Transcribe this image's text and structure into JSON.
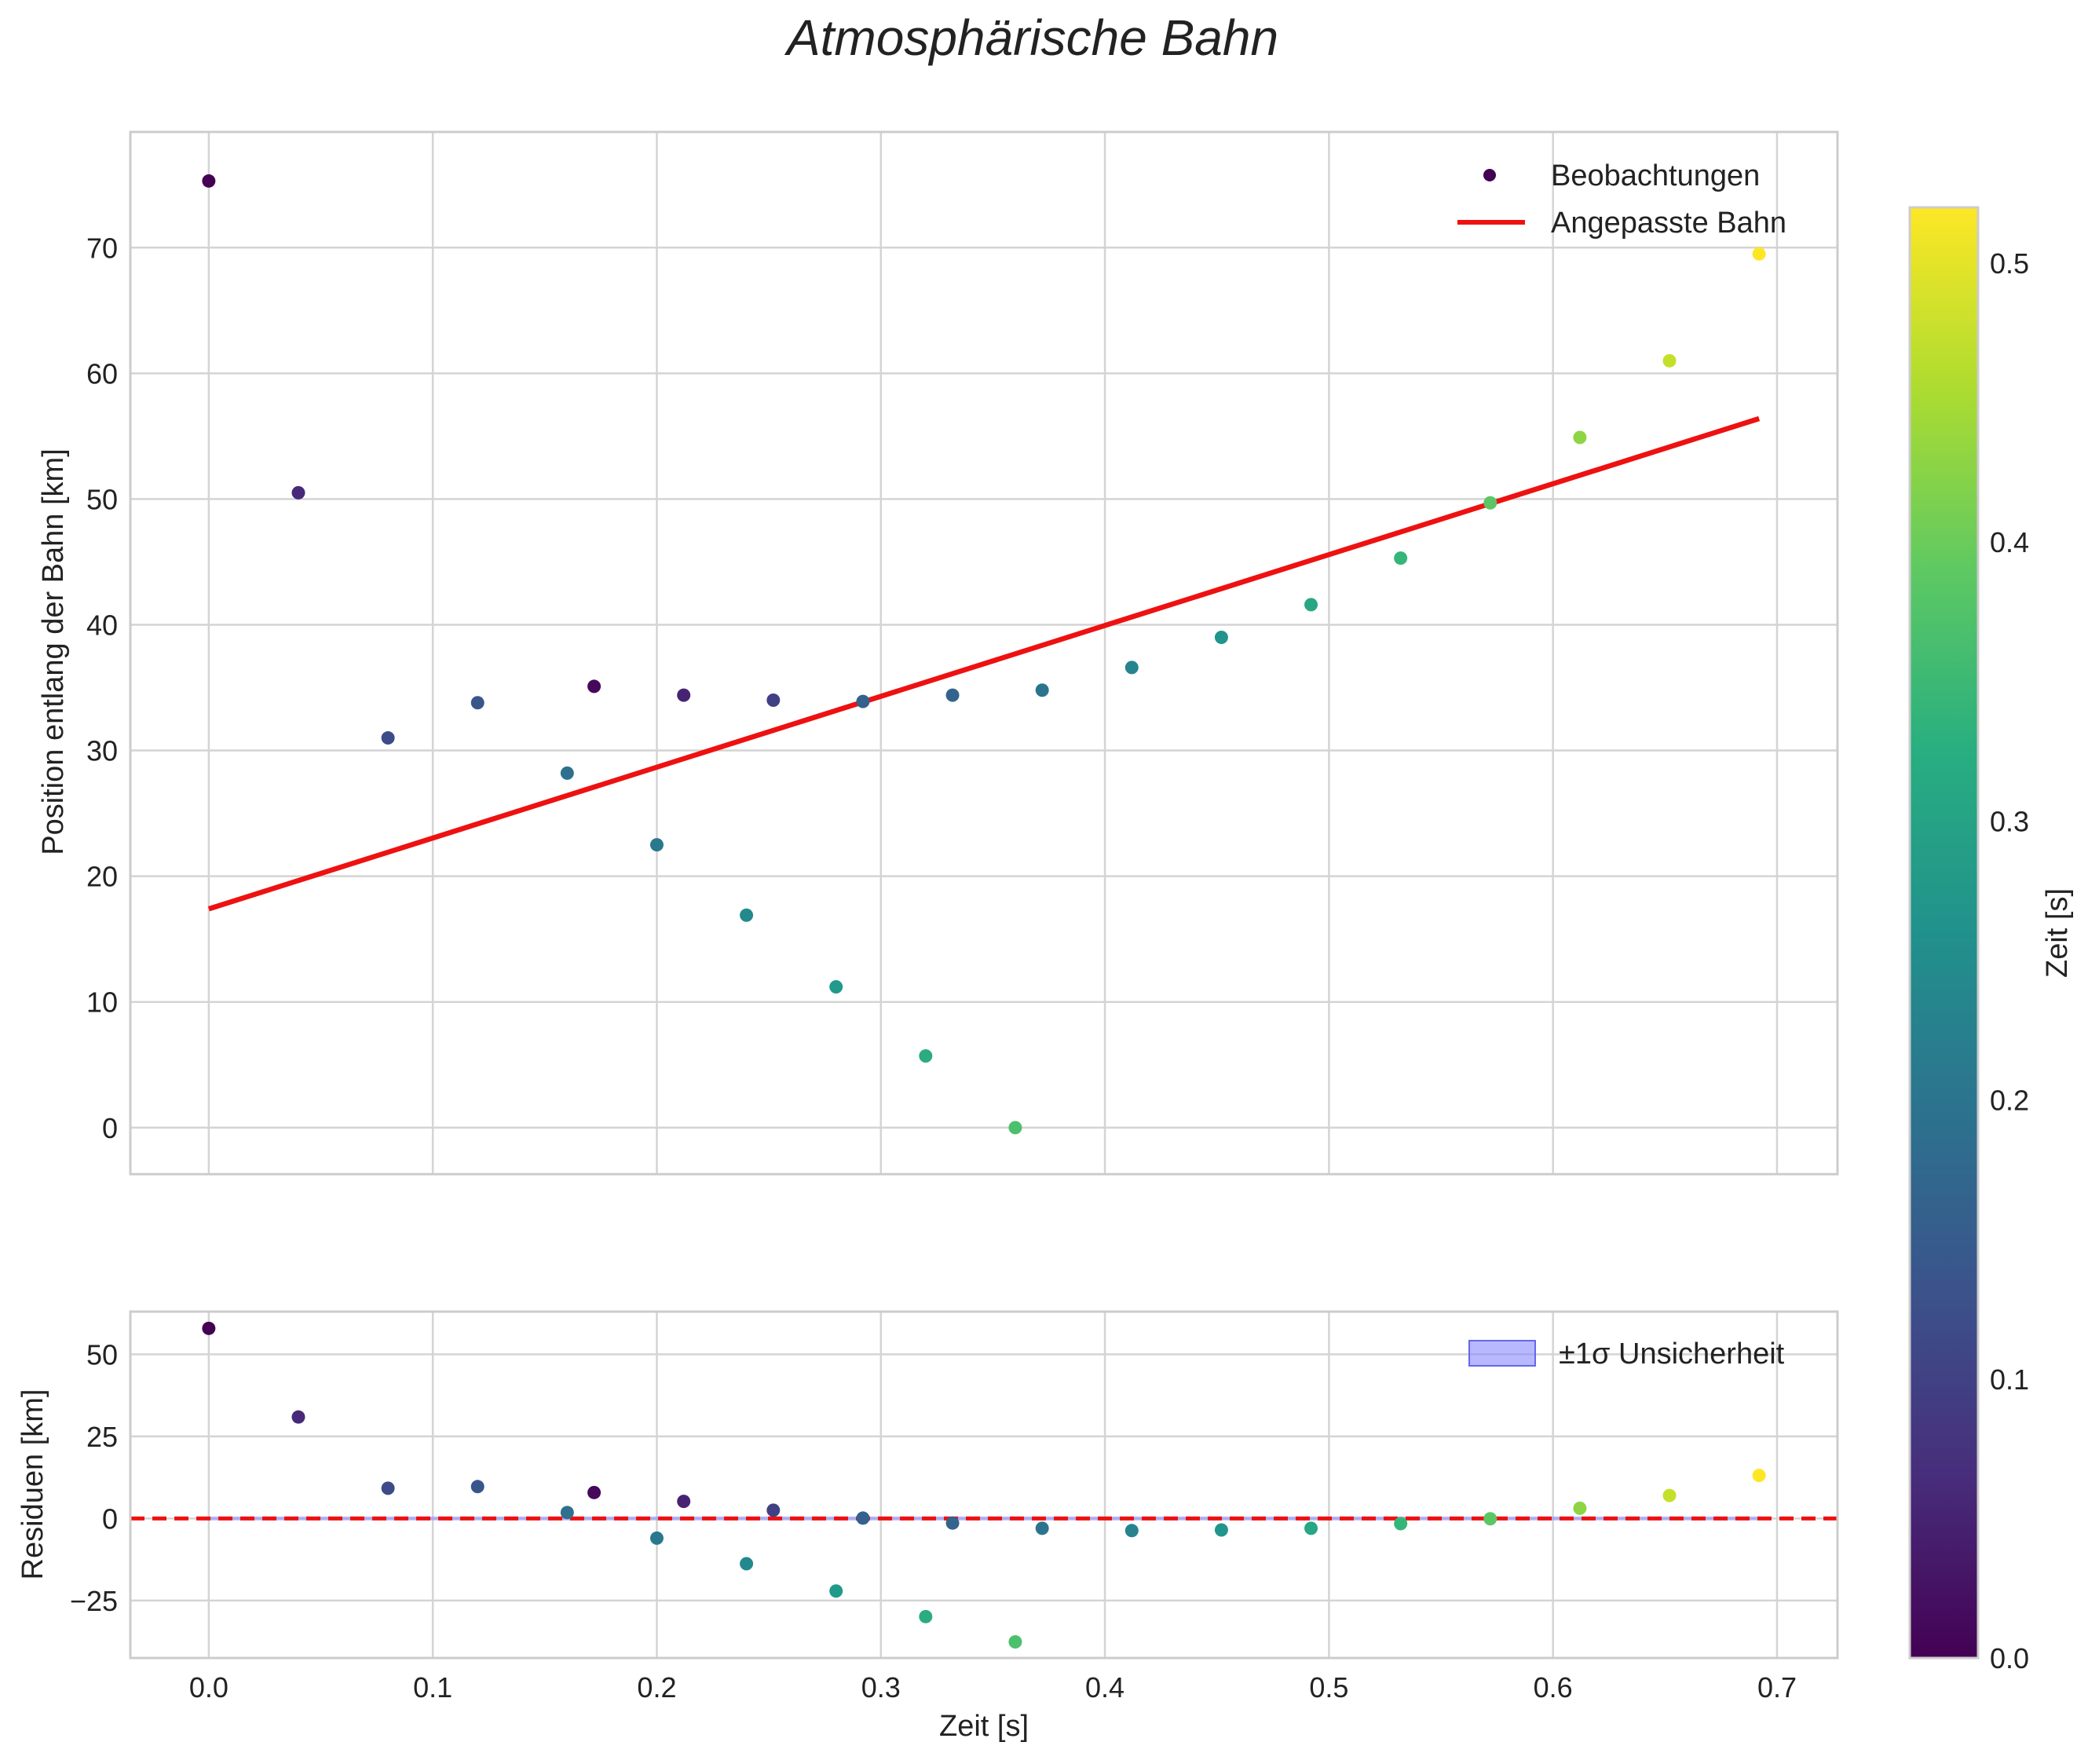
{
  "chart_data": {
    "type": "scatter",
    "title": "Atmosphärische Bahn",
    "xlabel": "Zeit [s]",
    "xlim": [
      -0.035,
      0.727
    ],
    "x_ticks": [
      "0.0",
      "0.1",
      "0.2",
      "0.3",
      "0.4",
      "0.5",
      "0.6",
      "0.7"
    ],
    "x_tick_values": [
      0.0,
      0.1,
      0.2,
      0.3,
      0.4,
      0.5,
      0.6,
      0.7
    ],
    "grid": true,
    "points": [
      {
        "t": 0.0,
        "pos": 75.3,
        "res": 57.9,
        "c": 0.0
      },
      {
        "t": 0.04,
        "pos": 50.5,
        "res": 30.9,
        "c": 0.06
      },
      {
        "t": 0.08,
        "pos": 31.0,
        "res": 9.2,
        "c": 0.12
      },
      {
        "t": 0.12,
        "pos": 33.8,
        "res": 9.7,
        "c": 0.14
      },
      {
        "t": 0.16,
        "pos": 28.2,
        "res": 1.8,
        "c": 0.19
      },
      {
        "t": 0.172,
        "pos": 35.1,
        "res": 7.9,
        "c": 0.01
      },
      {
        "t": 0.2,
        "pos": 22.5,
        "res": -6.0,
        "c": 0.21
      },
      {
        "t": 0.212,
        "pos": 34.4,
        "res": 5.2,
        "c": 0.05
      },
      {
        "t": 0.24,
        "pos": 16.9,
        "res": -13.8,
        "c": 0.245
      },
      {
        "t": 0.252,
        "pos": 34.0,
        "res": 2.5,
        "c": 0.1
      },
      {
        "t": 0.28,
        "pos": 11.2,
        "res": -22.1,
        "c": 0.28
      },
      {
        "t": 0.292,
        "pos": 33.9,
        "res": 0.1,
        "c": 0.16
      },
      {
        "t": 0.32,
        "pos": 5.7,
        "res": -29.9,
        "c": 0.32
      },
      {
        "t": 0.332,
        "pos": 34.4,
        "res": -1.4,
        "c": 0.165
      },
      {
        "t": 0.36,
        "pos": 0.0,
        "res": -37.6,
        "c": 0.37
      },
      {
        "t": 0.372,
        "pos": 34.8,
        "res": -3.0,
        "c": 0.2
      },
      {
        "t": 0.412,
        "pos": 36.6,
        "res": -3.7,
        "c": 0.235
      },
      {
        "t": 0.452,
        "pos": 39.0,
        "res": -3.5,
        "c": 0.27
      },
      {
        "t": 0.492,
        "pos": 41.6,
        "res": -3.0,
        "c": 0.31
      },
      {
        "t": 0.532,
        "pos": 45.3,
        "res": -1.6,
        "c": 0.345
      },
      {
        "t": 0.572,
        "pos": 49.7,
        "res": -0.1,
        "c": 0.385
      },
      {
        "t": 0.612,
        "pos": 54.9,
        "res": 3.1,
        "c": 0.43
      },
      {
        "t": 0.652,
        "pos": 61.0,
        "res": 7.0,
        "c": 0.475
      },
      {
        "t": 0.692,
        "pos": 69.5,
        "res": 13.1,
        "c": 0.52
      }
    ],
    "top_panel": {
      "ylabel": "Position entlang der Bahn [km]",
      "ylim": [
        -3.7,
        79.2
      ],
      "y_ticks": [
        "0",
        "10",
        "20",
        "30",
        "40",
        "50",
        "60",
        "70"
      ],
      "y_tick_values": [
        0,
        10,
        20,
        30,
        40,
        50,
        60,
        70
      ],
      "fit_line": {
        "x": [
          0.0,
          0.692
        ],
        "y": [
          17.4,
          56.4
        ],
        "color": "#ee1111"
      },
      "legend": {
        "position": "top-right",
        "observations_label": "Beobachtungen",
        "fit_label": "Angepasste Bahn"
      }
    },
    "bottom_panel": {
      "ylabel": "Residuen [km]",
      "ylim": [
        -42.5,
        63.0
      ],
      "y_ticks": [
        "50",
        "25",
        "0",
        "−25"
      ],
      "y_tick_values": [
        50,
        25,
        0,
        -25
      ],
      "zero_line_color": "#ee1111",
      "uncertainty_band": {
        "x": [
          0.0,
          0.692
        ],
        "half_width": 0.6,
        "color": "#8888ff"
      },
      "legend": {
        "position": "top-right",
        "band_label": "±1σ Unsicherheit"
      }
    },
    "colorbar": {
      "label": "Zeit [s]",
      "colormap": "viridis",
      "range": [
        0.0,
        0.52
      ],
      "ticks": [
        "0.0",
        "0.1",
        "0.2",
        "0.3",
        "0.4",
        "0.5"
      ],
      "tick_values": [
        0.0,
        0.1,
        0.2,
        0.3,
        0.4,
        0.5
      ]
    }
  }
}
